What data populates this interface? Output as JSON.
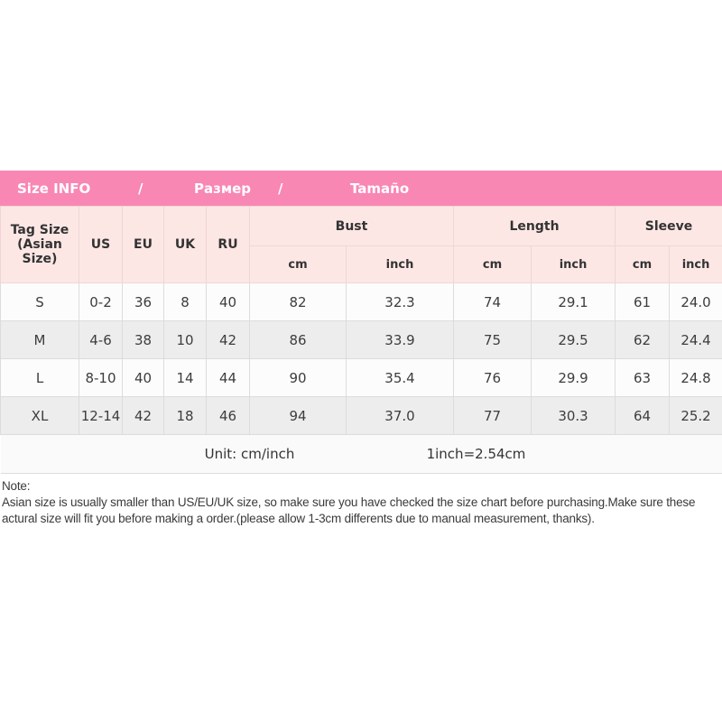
{
  "title_bar": {
    "items": [
      "Size INFO",
      "/",
      "Размер",
      "/",
      "Tamaño"
    ],
    "bg_color": "#F887B4",
    "text_color": "#FFFFFF"
  },
  "table": {
    "tag_header": {
      "line1": "Tag Size",
      "line2": "(Asian Size)"
    },
    "size_cols": [
      "US",
      "EU",
      "UK",
      "RU"
    ],
    "groups": [
      "Bust",
      "Length",
      "Sleeve"
    ],
    "unit_cols": [
      "cm",
      "inch",
      "cm",
      "inch",
      "cm",
      "inch"
    ],
    "rows": [
      {
        "tag": "S",
        "us": "0-2",
        "eu": "36",
        "uk": "8",
        "ru": "40",
        "bust_cm": "82",
        "bust_inch": "32.3",
        "length_cm": "74",
        "length_inch": "29.1",
        "sleeve_cm": "61",
        "sleeve_inch": "24.0"
      },
      {
        "tag": "M",
        "us": "4-6",
        "eu": "38",
        "uk": "10",
        "ru": "42",
        "bust_cm": "86",
        "bust_inch": "33.9",
        "length_cm": "75",
        "length_inch": "29.5",
        "sleeve_cm": "62",
        "sleeve_inch": "24.4"
      },
      {
        "tag": "L",
        "us": "8-10",
        "eu": "40",
        "uk": "14",
        "ru": "44",
        "bust_cm": "90",
        "bust_inch": "35.4",
        "length_cm": "76",
        "length_inch": "29.9",
        "sleeve_cm": "63",
        "sleeve_inch": "24.8"
      },
      {
        "tag": "XL",
        "us": "12-14",
        "eu": "42",
        "uk": "18",
        "ru": "46",
        "bust_cm": "94",
        "bust_inch": "37.0",
        "length_cm": "77",
        "length_inch": "30.3",
        "sleeve_cm": "64",
        "sleeve_inch": "25.2"
      }
    ],
    "footer": {
      "unit_label": "Unit: cm/inch",
      "conversion": "1inch=2.54cm"
    }
  },
  "note": {
    "heading": "Note:",
    "body": "Asian size is usually smaller than US/EU/UK size, so make sure you have checked the size chart before purchasing.Make sure these actural size will fit you before making a order.(please allow 1-3cm differents due to manual measurement, thanks)."
  },
  "colors": {
    "title_bar_pink": "#F887B4",
    "header_cell_pink": "#FCE7E5",
    "header_border_pink": "#EFD6D4",
    "row_light": "#FCFCFC",
    "row_striped": "#EDEDED",
    "grid_border": "#DCDCDC",
    "body_text": "#3D3D3D"
  }
}
